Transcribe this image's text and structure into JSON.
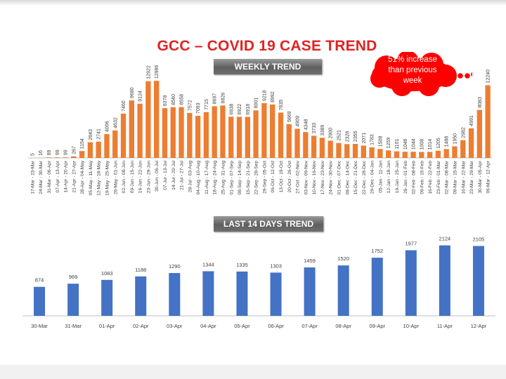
{
  "title": "GCC – COVID 19 CASE TREND",
  "weekly_banner": "WEEKLY TREND",
  "daily_banner": "LAST 14 DAYS TREND",
  "callout": {
    "line1": "51% increase",
    "line2": "than previous",
    "line3": "week"
  },
  "colors": {
    "weekly_bar": "#ed7d31",
    "daily_bar": "#4472c4",
    "title": "#e02323",
    "callout": "#ff0000"
  },
  "chart_data": [
    {
      "type": "bar",
      "title": "WEEKLY TREND",
      "categories": [
        "17-Mar - 23-Mar",
        "24-Mar - 30-Mar",
        "31-Mar - 06-Apr",
        "07-Apr - 13-Apr",
        "14-Apr - 20-Apr",
        "21-Apr - 27-Apr",
        "28-Apr - 04-May",
        "05-May - 11-May",
        "12-May - 18-May",
        "19-May - 25-May",
        "26-May - 01-Jun",
        "02-Jun - 08-Jun",
        "09-Jun - 15-Jun",
        "16-Jun - 22-Jun",
        "23-Jun - 29-Jun",
        "30-Jun - 06-Jul",
        "07-Jul - 13-Jul",
        "14-Jul - 20-Jul",
        "21-Jul - 27-Jul",
        "28-Jul - 03-Aug",
        "04-Aug - 10-Aug",
        "11-Aug - 17-Aug",
        "18-Aug - 24-Aug",
        "25-Aug - 31-Aug",
        "01-Sep - 07-Sep",
        "08-Sep - 14-Sep",
        "15-Sep - 21-Sep",
        "22-Sep - 28-Sep",
        "29-Sep - 05-Oct",
        "06-Oct - 12-Oct",
        "13-Oct - 19-Oct",
        "20-Oct - 26-Oct",
        "27-Oct - 02-Nov",
        "03-Nov - 09-Nov",
        "10-Nov - 16-Nov",
        "17-Nov - 23-Nov",
        "24-Nov - 30-Nov",
        "01-Dec - 07-Dec",
        "08-Dec - 14-Dec",
        "15-Dec - 21-Dec",
        "22-Dec - 28-Dec",
        "29-Dec - 04-Jan",
        "05-Jan - 11-Jan",
        "12-Jan - 18-Jan",
        "19-Jan - 25-Jan",
        "26-Jan - 01-Feb",
        "02-Feb - 08-Feb",
        "09-Feb - 15-Feb",
        "16-Feb - 22-Feb",
        "23-Feb - 01-Mar",
        "02-Mar - 08-Mar",
        "09-Mar - 15-Mar",
        "16-Mar - 22-Mar",
        "23-Mar - 29-Mar",
        "30-Mar - 05-Apr",
        "06-Mar - 12-Apr"
      ],
      "values": [
        5,
        16,
        89,
        99,
        99,
        267,
        1154,
        2643,
        2741,
        4006,
        4632,
        7460,
        9680,
        9124,
        12922,
        12986,
        8378,
        8540,
        8558,
        7572,
        7093,
        7715,
        8697,
        8826,
        6938,
        6922,
        6918,
        8001,
        9218,
        8992,
        7635,
        5669,
        4909,
        4348,
        3733,
        3389,
        2900,
        2521,
        2328,
        2355,
        2071,
        1783,
        1508,
        1259,
        1101,
        1046,
        1044,
        1008,
        1014,
        1205,
        1488,
        1950,
        2982,
        4991,
        8083,
        12240
      ],
      "series": [
        {
          "values": [
            5,
            16,
            89,
            99,
            99,
            267,
            1154,
            2643,
            2741,
            4006,
            4632,
            7460,
            9680,
            9124,
            12922,
            12986,
            8378,
            8540,
            8558,
            7572,
            7093,
            7715,
            8697,
            8826,
            6938,
            6922,
            6918,
            8001,
            9218,
            8992,
            7635,
            5669,
            4909,
            4348,
            3733,
            3389,
            2900,
            2521,
            2328,
            2355,
            2071,
            1783,
            1508,
            1259,
            1101,
            1046,
            1044,
            1008,
            1014,
            1205,
            1488,
            1950,
            2982,
            4991,
            8083,
            12240
          ]
        }
      ],
      "ylim": [
        0,
        13000
      ],
      "grid": false,
      "data_labels": true
    },
    {
      "type": "bar",
      "title": "LAST 14 DAYS TREND",
      "categories": [
        "30-Mar",
        "31-Mar",
        "01-Apr",
        "02-Apr",
        "03-Apr",
        "04-Apr",
        "05-Apr",
        "06-Apr",
        "07-Apr",
        "08-Apr",
        "09-Apr",
        "10-Apr",
        "11-Apr",
        "12-Apr"
      ],
      "values": [
        874,
        969,
        1083,
        1188,
        1290,
        1344,
        1335,
        1303,
        1459,
        1520,
        1752,
        1977,
        2124,
        2105
      ],
      "series": [
        {
          "values": [
            874,
            969,
            1083,
            1188,
            1290,
            1344,
            1335,
            1303,
            1459,
            1520,
            1752,
            1977,
            2124,
            2105
          ]
        }
      ],
      "ylim": [
        0,
        2200
      ],
      "grid": false,
      "data_labels": true
    }
  ]
}
